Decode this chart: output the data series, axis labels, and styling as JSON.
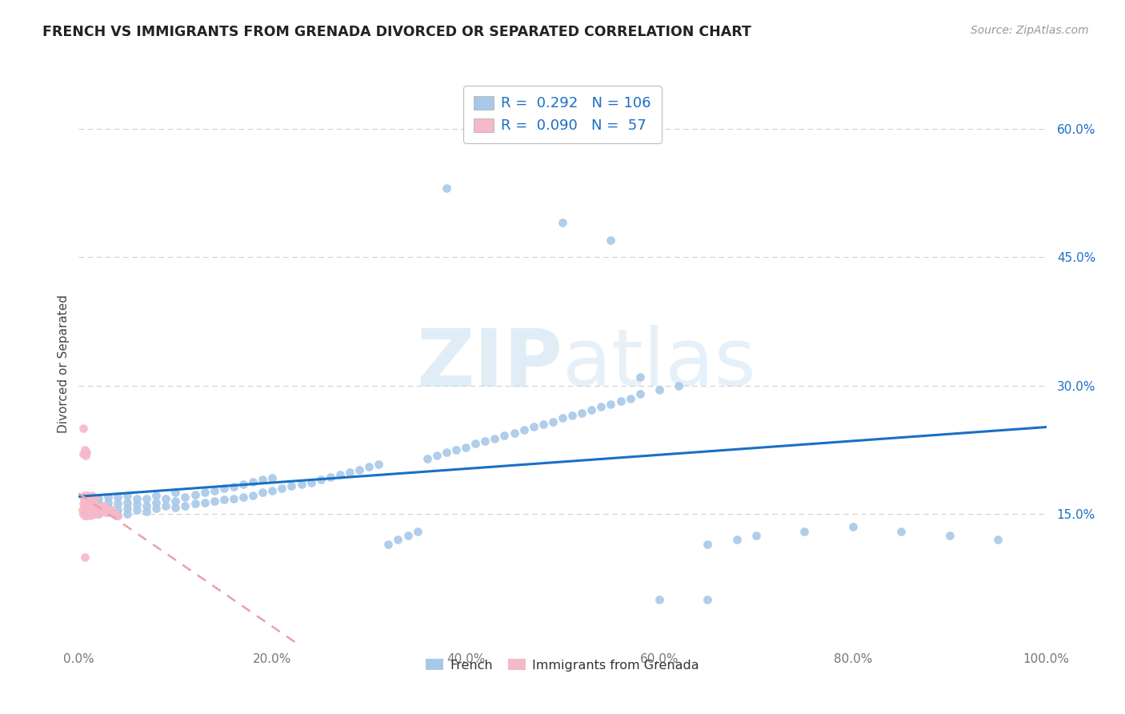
{
  "title": "FRENCH VS IMMIGRANTS FROM GRENADA DIVORCED OR SEPARATED CORRELATION CHART",
  "source": "Source: ZipAtlas.com",
  "ylabel": "Divorced or Separated",
  "xlim": [
    0,
    1.0
  ],
  "ylim": [
    0,
    0.65
  ],
  "xticks": [
    0.0,
    0.2,
    0.4,
    0.6,
    0.8,
    1.0
  ],
  "xticklabels": [
    "0.0%",
    "20.0%",
    "40.0%",
    "60.0%",
    "80.0%",
    "100.0%"
  ],
  "yticks": [
    0.15,
    0.3,
    0.45,
    0.6
  ],
  "yticklabels": [
    "15.0%",
    "30.0%",
    "45.0%",
    "60.0%"
  ],
  "blue_color": "#a8c8e8",
  "pink_color": "#f5b8c8",
  "blue_line_color": "#1a6fc4",
  "pink_line_color": "#e8a0b0",
  "R_blue": 0.292,
  "N_blue": 106,
  "R_pink": 0.09,
  "N_pink": 57,
  "blue_scatter_x": [
    0.01,
    0.01,
    0.02,
    0.02,
    0.02,
    0.02,
    0.03,
    0.03,
    0.03,
    0.03,
    0.04,
    0.04,
    0.04,
    0.04,
    0.05,
    0.05,
    0.05,
    0.05,
    0.06,
    0.06,
    0.06,
    0.07,
    0.07,
    0.07,
    0.08,
    0.08,
    0.08,
    0.09,
    0.09,
    0.1,
    0.1,
    0.1,
    0.11,
    0.11,
    0.12,
    0.12,
    0.13,
    0.13,
    0.14,
    0.14,
    0.15,
    0.15,
    0.16,
    0.16,
    0.17,
    0.17,
    0.18,
    0.18,
    0.19,
    0.19,
    0.2,
    0.2,
    0.21,
    0.22,
    0.23,
    0.24,
    0.25,
    0.26,
    0.27,
    0.28,
    0.29,
    0.3,
    0.31,
    0.32,
    0.33,
    0.34,
    0.35,
    0.36,
    0.37,
    0.38,
    0.39,
    0.4,
    0.41,
    0.42,
    0.43,
    0.44,
    0.45,
    0.46,
    0.47,
    0.48,
    0.49,
    0.5,
    0.51,
    0.52,
    0.53,
    0.54,
    0.55,
    0.56,
    0.57,
    0.58,
    0.6,
    0.62,
    0.65,
    0.68,
    0.7,
    0.75,
    0.8,
    0.85,
    0.9,
    0.95,
    0.38,
    0.5,
    0.55,
    0.58,
    0.6,
    0.65
  ],
  "blue_scatter_y": [
    0.155,
    0.16,
    0.15,
    0.158,
    0.162,
    0.168,
    0.152,
    0.158,
    0.163,
    0.17,
    0.148,
    0.155,
    0.162,
    0.17,
    0.15,
    0.157,
    0.163,
    0.172,
    0.155,
    0.161,
    0.168,
    0.153,
    0.16,
    0.168,
    0.157,
    0.163,
    0.172,
    0.16,
    0.168,
    0.158,
    0.165,
    0.175,
    0.16,
    0.17,
    0.162,
    0.173,
    0.163,
    0.175,
    0.165,
    0.177,
    0.167,
    0.18,
    0.168,
    0.182,
    0.17,
    0.185,
    0.172,
    0.188,
    0.175,
    0.19,
    0.177,
    0.192,
    0.18,
    0.183,
    0.185,
    0.187,
    0.19,
    0.193,
    0.196,
    0.199,
    0.202,
    0.205,
    0.208,
    0.115,
    0.12,
    0.125,
    0.13,
    0.215,
    0.218,
    0.222,
    0.225,
    0.228,
    0.232,
    0.235,
    0.238,
    0.242,
    0.245,
    0.248,
    0.252,
    0.255,
    0.258,
    0.262,
    0.265,
    0.268,
    0.272,
    0.275,
    0.278,
    0.282,
    0.285,
    0.29,
    0.295,
    0.3,
    0.115,
    0.12,
    0.125,
    0.13,
    0.135,
    0.13,
    0.125,
    0.12,
    0.53,
    0.49,
    0.47,
    0.31,
    0.05,
    0.05
  ],
  "pink_scatter_x": [
    0.004,
    0.005,
    0.005,
    0.006,
    0.006,
    0.007,
    0.007,
    0.008,
    0.008,
    0.009,
    0.009,
    0.01,
    0.01,
    0.011,
    0.011,
    0.012,
    0.012,
    0.013,
    0.013,
    0.014,
    0.014,
    0.015,
    0.015,
    0.016,
    0.016,
    0.017,
    0.018,
    0.019,
    0.02,
    0.021,
    0.022,
    0.023,
    0.024,
    0.025,
    0.026,
    0.027,
    0.028,
    0.03,
    0.032,
    0.034,
    0.036,
    0.04,
    0.005,
    0.006,
    0.007,
    0.008,
    0.009,
    0.01,
    0.012,
    0.014,
    0.016,
    0.005,
    0.006,
    0.007,
    0.008,
    0.005,
    0.006
  ],
  "pink_scatter_y": [
    0.155,
    0.15,
    0.162,
    0.148,
    0.158,
    0.152,
    0.163,
    0.148,
    0.16,
    0.152,
    0.163,
    0.15,
    0.16,
    0.152,
    0.163,
    0.148,
    0.158,
    0.15,
    0.16,
    0.152,
    0.163,
    0.15,
    0.16,
    0.152,
    0.163,
    0.15,
    0.155,
    0.16,
    0.155,
    0.158,
    0.152,
    0.155,
    0.158,
    0.16,
    0.155,
    0.158,
    0.152,
    0.155,
    0.152,
    0.155,
    0.15,
    0.148,
    0.17,
    0.172,
    0.168,
    0.17,
    0.172,
    0.168,
    0.17,
    0.172,
    0.168,
    0.22,
    0.225,
    0.218,
    0.222,
    0.25,
    0.1
  ],
  "watermark_text": "ZIPatlas",
  "watermark_zip": "ZIP",
  "watermark_atlas": "atlas"
}
